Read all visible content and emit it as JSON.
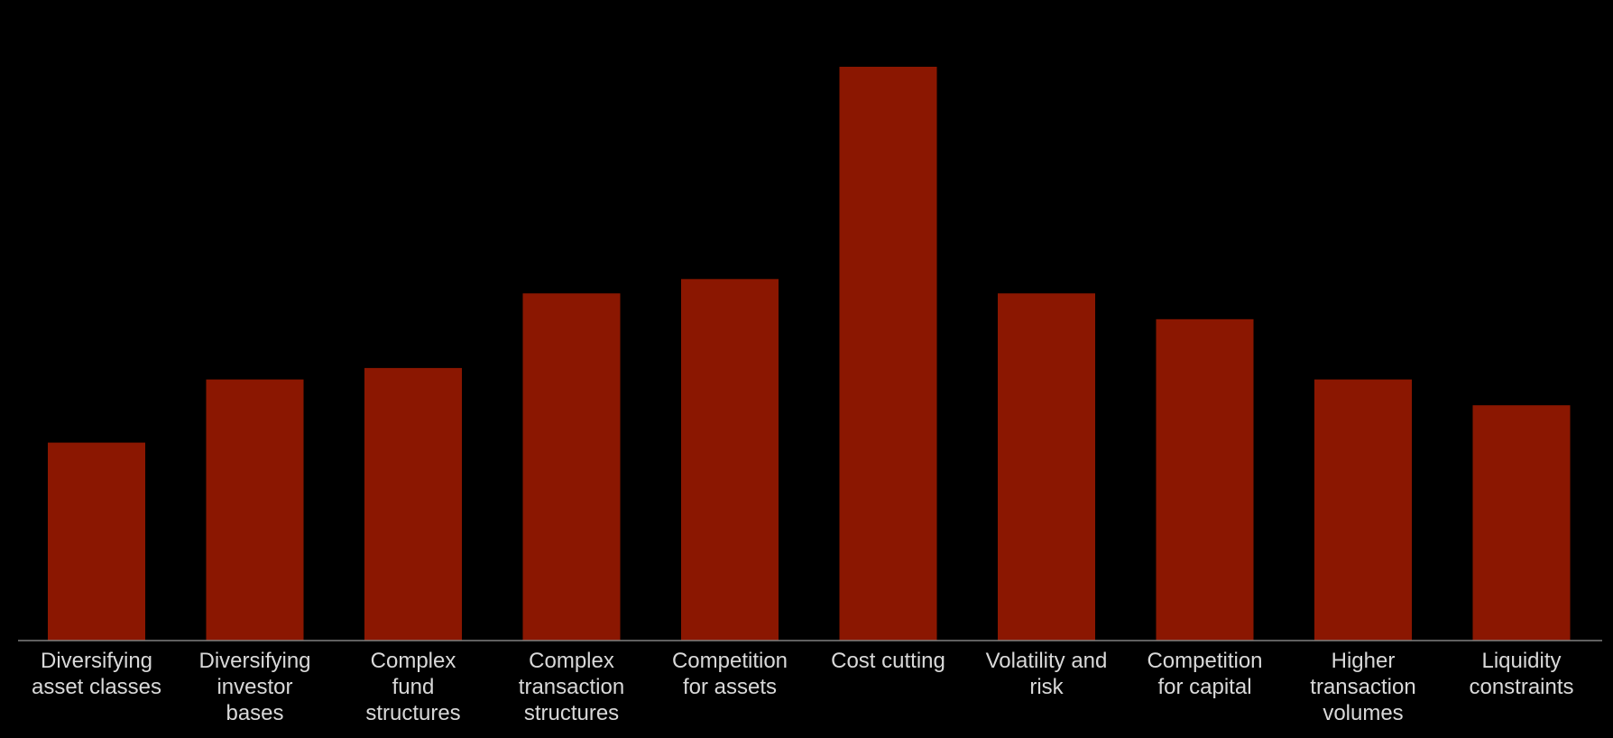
{
  "chart_data": {
    "type": "bar",
    "title": "",
    "xlabel": "",
    "ylabel": "",
    "ylim": [
      0,
      100
    ],
    "bar_color": "#8B1701",
    "axis_color": "#808080",
    "label_color": "#d9d9d9",
    "background": "#000000",
    "categories": [
      [
        "Diversifying",
        "asset classes"
      ],
      [
        "Diversifying",
        "investor",
        "bases"
      ],
      [
        "Complex",
        "fund",
        "structures"
      ],
      [
        "Complex",
        "transaction",
        "structures"
      ],
      [
        "Competition",
        "for assets"
      ],
      [
        "Cost cutting"
      ],
      [
        "Volatility and",
        "risk"
      ],
      [
        "Competition",
        "for capital"
      ],
      [
        "Higher",
        "transaction",
        "volumes"
      ],
      [
        "Liquidity",
        "constraints"
      ]
    ],
    "values": [
      34.5,
      45.5,
      47.5,
      60.5,
      63,
      100,
      60.5,
      56,
      45.5,
      41
    ]
  }
}
